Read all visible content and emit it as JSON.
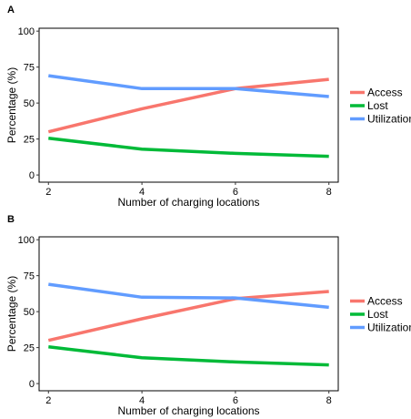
{
  "chart_data": [
    {
      "panel": "A",
      "type": "line",
      "xlabel": "Number of charging locations",
      "ylabel": "Percentage (%)",
      "x": [
        2,
        4,
        6,
        8
      ],
      "xticks": [
        "2",
        "4",
        "6",
        "8"
      ],
      "xlim": [
        1.8,
        8.2
      ],
      "ylim": [
        -5,
        102
      ],
      "yticks": [
        "0",
        "25",
        "50",
        "75",
        "100"
      ],
      "grid": false,
      "legend_position": "right",
      "series": [
        {
          "name": "Access",
          "color": "#F8766D",
          "values": [
            30,
            46,
            60,
            66.5
          ]
        },
        {
          "name": "Lost",
          "color": "#00BA38",
          "values": [
            25.5,
            18,
            15,
            13
          ]
        },
        {
          "name": "Utilization",
          "color": "#619CFF",
          "values": [
            69,
            60,
            60,
            54.5
          ]
        }
      ]
    },
    {
      "panel": "B",
      "type": "line",
      "xlabel": "Number of charging locations",
      "ylabel": "Percentage (%)",
      "x": [
        2,
        4,
        6,
        8
      ],
      "xticks": [
        "2",
        "4",
        "6",
        "8"
      ],
      "xlim": [
        1.8,
        8.2
      ],
      "ylim": [
        -5,
        102
      ],
      "yticks": [
        "0",
        "25",
        "50",
        "75",
        "100"
      ],
      "grid": false,
      "legend_position": "right",
      "series": [
        {
          "name": "Access",
          "color": "#F8766D",
          "values": [
            30,
            45,
            59,
            64
          ]
        },
        {
          "name": "Lost",
          "color": "#00BA38",
          "values": [
            25.5,
            18,
            15,
            13
          ]
        },
        {
          "name": "Utilization",
          "color": "#619CFF",
          "values": [
            69,
            60,
            59.5,
            53
          ]
        }
      ]
    }
  ]
}
